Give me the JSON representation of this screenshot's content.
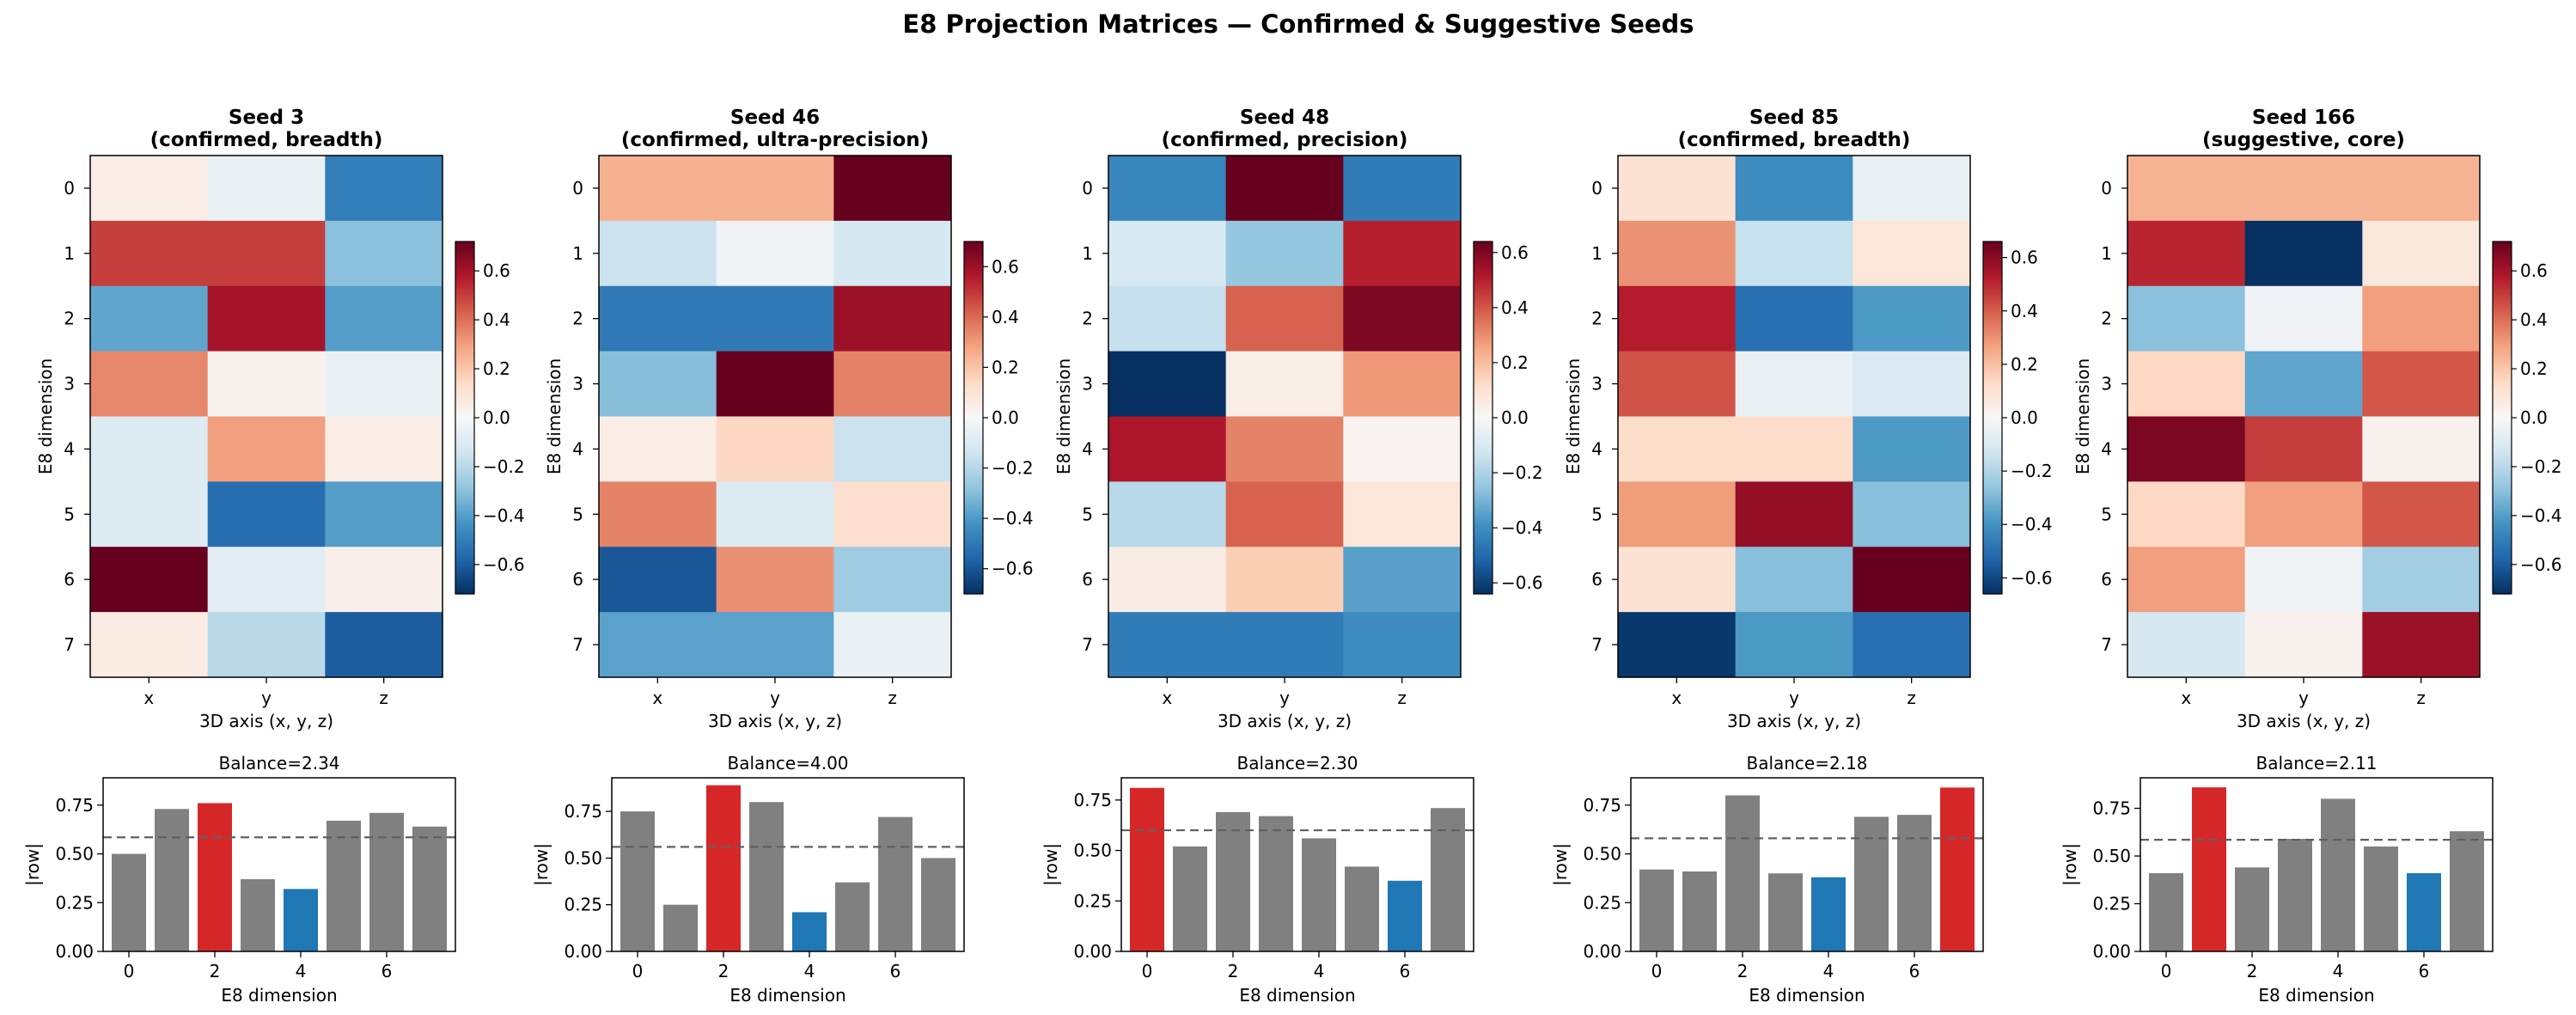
{
  "title": "E8 Projection Matrices — Confirmed & Suggestive Seeds",
  "colors": {
    "bar_default": "#808080",
    "bar_max": "#d62728",
    "bar_min": "#1f77b4",
    "mean_line": "#606060"
  },
  "chart_data": [
    {
      "type": "heatmap",
      "title_line1": "Seed 3",
      "title_line2": "(confirmed, breadth)",
      "xlabel": "3D axis (x, y, z)",
      "ylabel": "E8 dimension",
      "x_tick_labels": [
        "x",
        "y",
        "z"
      ],
      "y_tick_labels": [
        "0",
        "1",
        "2",
        "3",
        "4",
        "5",
        "6",
        "7"
      ],
      "colormap": "RdBu_r",
      "vmin": -0.72,
      "vmax": 0.72,
      "colorbar_ticks": [
        0.6,
        0.4,
        0.2,
        0.0,
        -0.2,
        -0.4,
        -0.6
      ],
      "colorbar_tick_labels": [
        "0.6",
        "0.4",
        "0.2",
        "0.0",
        "−0.2",
        "−0.4",
        "−0.6"
      ],
      "matrix": [
        [
          0.05,
          -0.05,
          -0.5
        ],
        [
          0.5,
          0.5,
          -0.3
        ],
        [
          -0.38,
          0.6,
          -0.4
        ],
        [
          0.35,
          0.03,
          -0.05
        ],
        [
          -0.1,
          0.3,
          0.05
        ],
        [
          -0.1,
          -0.55,
          -0.4
        ],
        [
          0.72,
          -0.08,
          0.04
        ],
        [
          0.06,
          -0.2,
          -0.6
        ]
      ]
    },
    {
      "type": "bar",
      "title": "Balance=2.34",
      "xlabel": "E8 dimension",
      "ylabel": "|row|",
      "x": [
        0,
        1,
        2,
        3,
        4,
        5,
        6,
        7
      ],
      "values": [
        0.5,
        0.73,
        0.76,
        0.37,
        0.32,
        0.67,
        0.71,
        0.64
      ],
      "mean": 0.585,
      "max_index": 2,
      "min_index": 4,
      "xlim": [
        -0.6,
        7.6
      ],
      "ylim": [
        0,
        0.89
      ],
      "x_ticks": [
        0,
        2,
        4,
        6
      ],
      "y_ticks": [
        0,
        0.25,
        0.5,
        0.75
      ],
      "x_tick_labels": [
        "0",
        "2",
        "4",
        "6"
      ],
      "y_tick_labels": [
        "0.00",
        "0.25",
        "0.50",
        "0.75"
      ]
    },
    {
      "type": "heatmap",
      "title_line1": "Seed 46",
      "title_line2": "(confirmed, ultra-precision)",
      "xlabel": "3D axis (x, y, z)",
      "ylabel": "E8 dimension",
      "x_tick_labels": [
        "x",
        "y",
        "z"
      ],
      "y_tick_labels": [
        "0",
        "1",
        "2",
        "3",
        "4",
        "5",
        "6",
        "7"
      ],
      "colormap": "RdBu_r",
      "vmin": -0.7,
      "vmax": 0.7,
      "colorbar_ticks": [
        0.6,
        0.4,
        0.2,
        0.0,
        -0.2,
        -0.4,
        -0.6
      ],
      "colorbar_tick_labels": [
        "0.6",
        "0.4",
        "0.2",
        "0.0",
        "−0.2",
        "−0.4",
        "−0.6"
      ],
      "matrix": [
        [
          0.25,
          0.25,
          0.7
        ],
        [
          -0.15,
          -0.03,
          -0.12
        ],
        [
          -0.5,
          -0.5,
          0.6
        ],
        [
          -0.3,
          0.7,
          0.35
        ],
        [
          0.05,
          0.15,
          -0.15
        ],
        [
          0.35,
          -0.1,
          0.12
        ],
        [
          -0.6,
          0.32,
          -0.25
        ],
        [
          -0.38,
          -0.38,
          -0.05
        ]
      ]
    },
    {
      "type": "bar",
      "title": "Balance=4.00",
      "xlabel": "E8 dimension",
      "ylabel": "|row|",
      "x": [
        0,
        1,
        2,
        3,
        4,
        5,
        6,
        7
      ],
      "values": [
        0.75,
        0.25,
        0.89,
        0.8,
        0.21,
        0.37,
        0.72,
        0.5
      ],
      "mean": 0.56,
      "max_index": 2,
      "min_index": 4,
      "xlim": [
        -0.6,
        7.6
      ],
      "ylim": [
        0,
        0.93
      ],
      "x_ticks": [
        0,
        2,
        4,
        6
      ],
      "y_ticks": [
        0,
        0.25,
        0.5,
        0.75
      ],
      "x_tick_labels": [
        "0",
        "2",
        "4",
        "6"
      ],
      "y_tick_labels": [
        "0.00",
        "0.25",
        "0.50",
        "0.75"
      ]
    },
    {
      "type": "heatmap",
      "title_line1": "Seed 48",
      "title_line2": "(confirmed, precision)",
      "xlabel": "3D axis (x, y, z)",
      "ylabel": "E8 dimension",
      "x_tick_labels": [
        "x",
        "y",
        "z"
      ],
      "y_tick_labels": [
        "0",
        "1",
        "2",
        "3",
        "4",
        "5",
        "6",
        "7"
      ],
      "colormap": "RdBu_r",
      "vmin": -0.64,
      "vmax": 0.64,
      "colorbar_ticks": [
        0.6,
        0.4,
        0.2,
        0.0,
        -0.2,
        -0.4,
        -0.6
      ],
      "colorbar_tick_labels": [
        "0.6",
        "0.4",
        "0.2",
        "0.0",
        "−0.2",
        "−0.4",
        "−0.6"
      ],
      "matrix": [
        [
          -0.42,
          0.64,
          -0.45
        ],
        [
          -0.1,
          -0.25,
          0.5
        ],
        [
          -0.15,
          0.38,
          0.6
        ],
        [
          -0.64,
          0.04,
          0.28
        ],
        [
          0.52,
          0.32,
          0.02
        ],
        [
          -0.18,
          0.38,
          0.08
        ],
        [
          0.05,
          0.16,
          -0.35
        ],
        [
          -0.45,
          -0.45,
          -0.4
        ]
      ]
    },
    {
      "type": "bar",
      "title": "Balance=2.30",
      "xlabel": "E8 dimension",
      "ylabel": "|row|",
      "x": [
        0,
        1,
        2,
        3,
        4,
        5,
        6,
        7
      ],
      "values": [
        0.81,
        0.52,
        0.69,
        0.67,
        0.56,
        0.42,
        0.35,
        0.71
      ],
      "mean": 0.6,
      "max_index": 0,
      "min_index": 6,
      "xlim": [
        -0.6,
        7.6
      ],
      "ylim": [
        0,
        0.86
      ],
      "x_ticks": [
        0,
        2,
        4,
        6
      ],
      "y_ticks": [
        0,
        0.25,
        0.5,
        0.75
      ],
      "x_tick_labels": [
        "0",
        "2",
        "4",
        "6"
      ],
      "y_tick_labels": [
        "0.00",
        "0.25",
        "0.50",
        "0.75"
      ]
    },
    {
      "type": "heatmap",
      "title_line1": "Seed 85",
      "title_line2": "(confirmed, breadth)",
      "xlabel": "3D axis (x, y, z)",
      "ylabel": "E8 dimension",
      "x_tick_labels": [
        "x",
        "y",
        "z"
      ],
      "y_tick_labels": [
        "0",
        "1",
        "2",
        "3",
        "4",
        "5",
        "6",
        "7"
      ],
      "colormap": "RdBu_r",
      "vmin": -0.66,
      "vmax": 0.66,
      "colorbar_ticks": [
        0.6,
        0.4,
        0.2,
        0.0,
        -0.2,
        -0.4,
        -0.6
      ],
      "colorbar_tick_labels": [
        "0.6",
        "0.4",
        "0.2",
        "0.0",
        "−0.2",
        "−0.4",
        "−0.6"
      ],
      "matrix": [
        [
          0.1,
          -0.42,
          -0.05
        ],
        [
          0.3,
          -0.15,
          0.08
        ],
        [
          0.52,
          -0.5,
          -0.38
        ],
        [
          0.42,
          -0.05,
          -0.1
        ],
        [
          0.12,
          0.12,
          -0.38
        ],
        [
          0.28,
          0.58,
          -0.28
        ],
        [
          0.1,
          -0.28,
          0.66
        ],
        [
          -0.64,
          -0.38,
          -0.5
        ]
      ]
    },
    {
      "type": "bar",
      "title": "Balance=2.18",
      "xlabel": "E8 dimension",
      "ylabel": "|row|",
      "x": [
        0,
        1,
        2,
        3,
        4,
        5,
        6,
        7
      ],
      "values": [
        0.42,
        0.41,
        0.8,
        0.4,
        0.38,
        0.69,
        0.7,
        0.84
      ],
      "mean": 0.58,
      "max_index": 7,
      "min_index": 4,
      "xlim": [
        -0.6,
        7.6
      ],
      "ylim": [
        0,
        0.89
      ],
      "x_ticks": [
        0,
        2,
        4,
        6
      ],
      "y_ticks": [
        0,
        0.25,
        0.5,
        0.75
      ],
      "x_tick_labels": [
        "0",
        "2",
        "4",
        "6"
      ],
      "y_tick_labels": [
        "0.00",
        "0.25",
        "0.50",
        "0.75"
      ]
    },
    {
      "type": "heatmap",
      "title_line1": "Seed 166",
      "title_line2": "(suggestive, core)",
      "xlabel": "3D axis (x, y, z)",
      "ylabel": "E8 dimension",
      "x_tick_labels": [
        "x",
        "y",
        "z"
      ],
      "y_tick_labels": [
        "0",
        "1",
        "2",
        "3",
        "4",
        "5",
        "6",
        "7"
      ],
      "colormap": "RdBu_r",
      "vmin": -0.72,
      "vmax": 0.72,
      "colorbar_ticks": [
        0.6,
        0.4,
        0.2,
        0.0,
        -0.2,
        -0.4,
        -0.6
      ],
      "colorbar_tick_labels": [
        "0.6",
        "0.4",
        "0.2",
        "0.0",
        "−0.2",
        "−0.4",
        "−0.6"
      ],
      "matrix": [
        [
          0.25,
          0.25,
          0.25
        ],
        [
          0.55,
          -0.72,
          0.08
        ],
        [
          -0.3,
          -0.03,
          0.3
        ],
        [
          0.15,
          -0.38,
          0.45
        ],
        [
          0.68,
          0.5,
          0.03
        ],
        [
          0.15,
          0.3,
          0.45
        ],
        [
          0.3,
          -0.03,
          -0.25
        ],
        [
          -0.12,
          0.03,
          0.62
        ]
      ]
    },
    {
      "type": "bar",
      "title": "Balance=2.11",
      "xlabel": "E8 dimension",
      "ylabel": "|row|",
      "x": [
        0,
        1,
        2,
        3,
        4,
        5,
        6,
        7
      ],
      "values": [
        0.41,
        0.86,
        0.44,
        0.59,
        0.8,
        0.55,
        0.41,
        0.63
      ],
      "mean": 0.585,
      "max_index": 1,
      "min_index": 6,
      "xlim": [
        -0.6,
        7.6
      ],
      "ylim": [
        0,
        0.91
      ],
      "x_ticks": [
        0,
        2,
        4,
        6
      ],
      "y_ticks": [
        0,
        0.25,
        0.5,
        0.75
      ],
      "x_tick_labels": [
        "0",
        "2",
        "4",
        "6"
      ],
      "y_tick_labels": [
        "0.00",
        "0.25",
        "0.50",
        "0.75"
      ]
    }
  ]
}
